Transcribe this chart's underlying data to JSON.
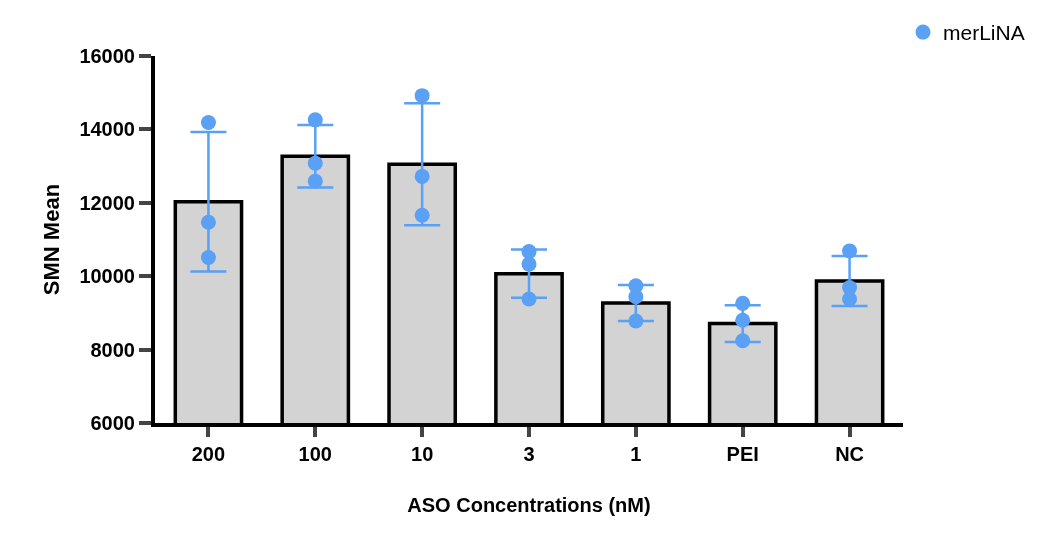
{
  "chart_data": {
    "type": "bar",
    "xlabel": "ASO Concentrations (nM)",
    "ylabel": "SMN Mean",
    "categories": [
      "200",
      "100",
      "10",
      "3",
      "1",
      "PEI",
      "NC"
    ],
    "series": [
      {
        "color": "#d3d3d3",
        "values": [
          12030,
          13270,
          13050,
          10070,
          9270,
          8710,
          9870
        ],
        "errors": [
          1900,
          850,
          1660,
          660,
          490,
          500,
          680
        ]
      },
      {
        "type": "scatter",
        "name": "merLiNA",
        "color": "#5aa0f5",
        "x": [
          "200",
          "200",
          "200",
          "100",
          "100",
          "100",
          "10",
          "10",
          "10",
          "3",
          "3",
          "3",
          "1",
          "1",
          "1",
          "PEI",
          "PEI",
          "PEI",
          "NC",
          "NC",
          "NC"
        ],
        "values": [
          14190,
          11470,
          10510,
          14260,
          13080,
          12590,
          14920,
          12720,
          11660,
          10670,
          10330,
          9380,
          9740,
          9440,
          8780,
          9260,
          8800,
          8240,
          10690,
          9690,
          9380
        ]
      }
    ],
    "ylim": [
      6000,
      16000
    ],
    "yticks": [
      6000,
      8000,
      10000,
      12000,
      14000,
      16000
    ],
    "legend": "top right",
    "marker": "circle"
  }
}
